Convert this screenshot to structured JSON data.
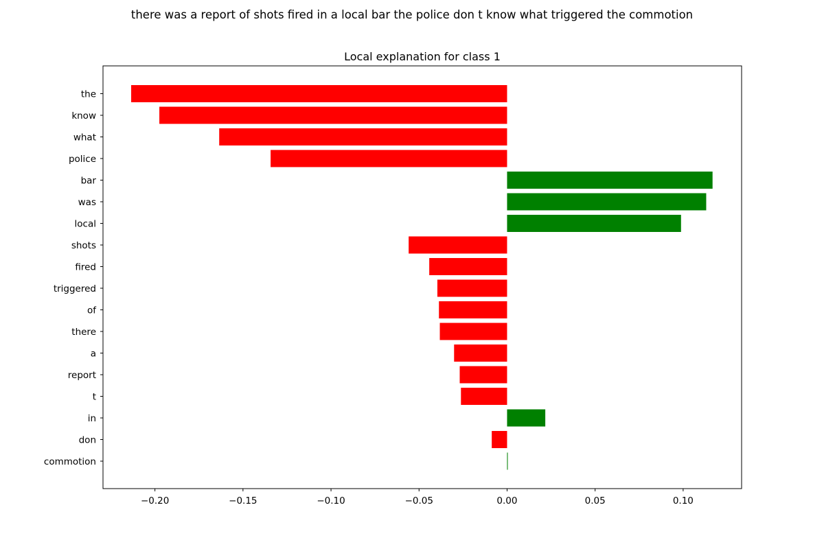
{
  "suptitle": "there was a report of shots fired in a local bar the police don t know what triggered the commotion",
  "chart_data": {
    "type": "bar",
    "orientation": "horizontal",
    "title": "Local explanation for class 1",
    "xlabel": "",
    "ylabel": "",
    "xlim": [
      -0.2295,
      0.1332
    ],
    "xticks": [
      -0.2,
      -0.15,
      -0.1,
      -0.05,
      0.0,
      0.05,
      0.1
    ],
    "xtick_labels": [
      "−0.20",
      "−0.15",
      "−0.10",
      "−0.05",
      "0.00",
      "0.05",
      "0.10"
    ],
    "grid": false,
    "positive_color": "#008000",
    "negative_color": "#ff0000",
    "categories": [
      "the",
      "know",
      "what",
      "police",
      "bar",
      "was",
      "local",
      "shots",
      "fired",
      "triggered",
      "of",
      "there",
      "a",
      "report",
      "t",
      "in",
      "don",
      "commotion"
    ],
    "values": [
      -0.2135,
      -0.1975,
      -0.1635,
      -0.1343,
      0.1167,
      0.1131,
      0.0988,
      -0.0559,
      -0.0442,
      -0.0396,
      -0.0387,
      -0.0382,
      -0.0301,
      -0.0269,
      -0.0262,
      0.0217,
      -0.0087,
      0.0004
    ]
  }
}
